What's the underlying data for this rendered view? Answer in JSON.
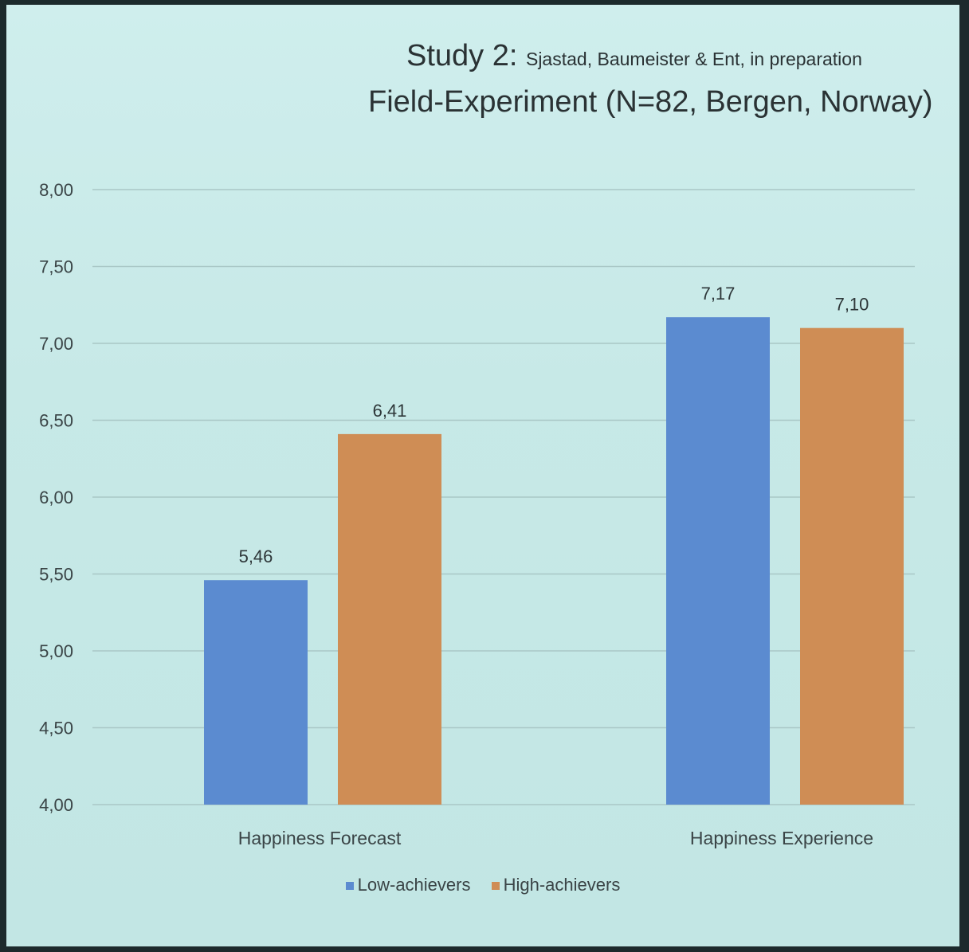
{
  "chart_data": {
    "type": "bar",
    "title": "Study 2:",
    "subtitle": "Sjastad, Baumeister & Ent, in preparation",
    "subtitle2": "Field-Experiment (N=82, Bergen, Norway)",
    "categories": [
      "Happiness Forecast",
      "Happiness Experience"
    ],
    "series": [
      {
        "name": "Low-achievers",
        "values": [
          5.46,
          7.17
        ],
        "labels": [
          "5,46",
          "7,17"
        ],
        "color": "#5b8bd0"
      },
      {
        "name": "High-achievers",
        "values": [
          6.41,
          7.1
        ],
        "labels": [
          "6,41",
          "7,10"
        ],
        "color": "#cf8d55"
      }
    ],
    "ylim": [
      4.0,
      8.0
    ],
    "yticks": [
      4.0,
      4.5,
      5.0,
      5.5,
      6.0,
      6.5,
      7.0,
      7.5,
      8.0
    ],
    "ytick_labels": [
      "4,00",
      "4,50",
      "5,00",
      "5,50",
      "6,00",
      "6,50",
      "7,00",
      "7,50",
      "8,00"
    ],
    "grid": true,
    "legend": "bottom",
    "xlabel": "",
    "ylabel": ""
  }
}
